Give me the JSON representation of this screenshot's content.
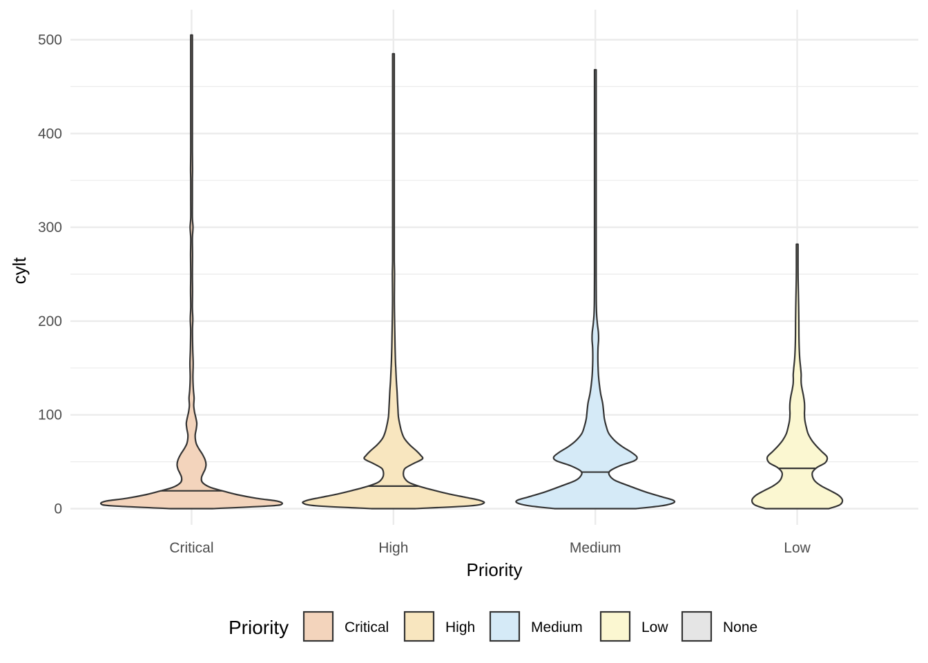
{
  "chart_data": {
    "type": "violin",
    "title": "",
    "xlabel": "Priority",
    "ylabel": "cylt",
    "ylim": [
      -15,
      520
    ],
    "y_ticks": [
      0,
      100,
      200,
      300,
      400,
      500
    ],
    "grid": true,
    "legend": {
      "title": "Priority",
      "position": "bottom",
      "entries": [
        {
          "label": "Critical",
          "color": "#F3D4BC"
        },
        {
          "label": "High",
          "color": "#F8E6BF"
        },
        {
          "label": "Medium",
          "color": "#D5EAF7"
        },
        {
          "label": "Low",
          "color": "#FBF7D1"
        },
        {
          "label": "None",
          "color": "#E5E5E5"
        }
      ]
    },
    "categories": [
      "Critical",
      "High",
      "Medium",
      "Low"
    ],
    "series": [
      {
        "name": "Critical",
        "color": "#F3D4BC",
        "median": 19,
        "profile": [
          [
            0,
            0.23
          ],
          [
            3,
            0.88
          ],
          [
            5,
            1.0
          ],
          [
            8,
            0.95
          ],
          [
            11,
            0.72
          ],
          [
            15,
            0.5
          ],
          [
            19,
            0.34
          ],
          [
            23,
            0.2
          ],
          [
            28,
            0.12
          ],
          [
            33,
            0.11
          ],
          [
            38,
            0.13
          ],
          [
            42,
            0.15
          ],
          [
            47,
            0.16
          ],
          [
            52,
            0.15
          ],
          [
            58,
            0.12
          ],
          [
            64,
            0.08
          ],
          [
            70,
            0.05
          ],
          [
            78,
            0.04
          ],
          [
            85,
            0.052
          ],
          [
            91,
            0.058
          ],
          [
            97,
            0.047
          ],
          [
            103,
            0.033
          ],
          [
            110,
            0.024
          ],
          [
            118,
            0.028
          ],
          [
            127,
            0.02
          ],
          [
            140,
            0.015
          ],
          [
            155,
            0.018
          ],
          [
            170,
            0.013
          ],
          [
            190,
            0.01
          ],
          [
            202,
            0.014
          ],
          [
            215,
            0.009
          ],
          [
            232,
            0.011
          ],
          [
            250,
            0.008
          ],
          [
            270,
            0.011
          ],
          [
            288,
            0.009
          ],
          [
            300,
            0.016
          ],
          [
            310,
            0.009
          ],
          [
            330,
            0.007
          ],
          [
            350,
            0.009
          ],
          [
            362,
            0.011
          ],
          [
            380,
            0.007
          ],
          [
            405,
            0.008
          ],
          [
            420,
            0.007
          ],
          [
            440,
            0.005
          ],
          [
            470,
            0.004
          ],
          [
            490,
            0.003
          ],
          [
            505,
            0.0
          ]
        ]
      },
      {
        "name": "High",
        "color": "#F8E6BF",
        "median": 24,
        "profile": [
          [
            0,
            0.24
          ],
          [
            3,
            0.85
          ],
          [
            6,
            1.0
          ],
          [
            9,
            0.95
          ],
          [
            12,
            0.8
          ],
          [
            16,
            0.6
          ],
          [
            20,
            0.43
          ],
          [
            24,
            0.28
          ],
          [
            28,
            0.17
          ],
          [
            33,
            0.12
          ],
          [
            38,
            0.11
          ],
          [
            43,
            0.13
          ],
          [
            48,
            0.22
          ],
          [
            53,
            0.32
          ],
          [
            57,
            0.3
          ],
          [
            62,
            0.25
          ],
          [
            68,
            0.18
          ],
          [
            75,
            0.12
          ],
          [
            82,
            0.09
          ],
          [
            90,
            0.07
          ],
          [
            98,
            0.055
          ],
          [
            106,
            0.05
          ],
          [
            115,
            0.045
          ],
          [
            125,
            0.04
          ],
          [
            135,
            0.033
          ],
          [
            145,
            0.028
          ],
          [
            158,
            0.022
          ],
          [
            172,
            0.018
          ],
          [
            188,
            0.015
          ],
          [
            205,
            0.012
          ],
          [
            225,
            0.01
          ],
          [
            250,
            0.012
          ],
          [
            265,
            0.009
          ],
          [
            290,
            0.008
          ],
          [
            320,
            0.007
          ],
          [
            360,
            0.008
          ],
          [
            400,
            0.006
          ],
          [
            440,
            0.005
          ],
          [
            470,
            0.004
          ],
          [
            485,
            0.0
          ]
        ]
      },
      {
        "name": "Medium",
        "color": "#D5EAF7",
        "median": 39,
        "profile": [
          [
            0,
            0.45
          ],
          [
            3,
            0.73
          ],
          [
            6,
            0.86
          ],
          [
            9,
            0.86
          ],
          [
            13,
            0.72
          ],
          [
            18,
            0.55
          ],
          [
            24,
            0.38
          ],
          [
            30,
            0.22
          ],
          [
            35,
            0.16
          ],
          [
            40,
            0.16
          ],
          [
            46,
            0.28
          ],
          [
            51,
            0.43
          ],
          [
            55,
            0.46
          ],
          [
            60,
            0.4
          ],
          [
            66,
            0.3
          ],
          [
            72,
            0.22
          ],
          [
            80,
            0.15
          ],
          [
            88,
            0.12
          ],
          [
            96,
            0.1
          ],
          [
            105,
            0.09
          ],
          [
            113,
            0.08
          ],
          [
            122,
            0.06
          ],
          [
            132,
            0.045
          ],
          [
            142,
            0.035
          ],
          [
            152,
            0.03
          ],
          [
            162,
            0.028
          ],
          [
            172,
            0.03
          ],
          [
            180,
            0.036
          ],
          [
            188,
            0.034
          ],
          [
            196,
            0.024
          ],
          [
            206,
            0.015
          ],
          [
            218,
            0.011
          ],
          [
            232,
            0.01
          ],
          [
            250,
            0.009
          ],
          [
            280,
            0.008
          ],
          [
            320,
            0.007
          ],
          [
            360,
            0.006
          ],
          [
            400,
            0.005
          ],
          [
            440,
            0.004
          ],
          [
            468,
            0.0
          ]
        ]
      },
      {
        "name": "Low",
        "color": "#FBF7D1",
        "median": 43,
        "profile": [
          [
            0,
            0.35
          ],
          [
            4,
            0.47
          ],
          [
            9,
            0.5
          ],
          [
            14,
            0.46
          ],
          [
            19,
            0.37
          ],
          [
            24,
            0.27
          ],
          [
            29,
            0.2
          ],
          [
            34,
            0.17
          ],
          [
            39,
            0.17
          ],
          [
            44,
            0.22
          ],
          [
            49,
            0.31
          ],
          [
            55,
            0.33
          ],
          [
            61,
            0.27
          ],
          [
            67,
            0.21
          ],
          [
            73,
            0.16
          ],
          [
            80,
            0.12
          ],
          [
            87,
            0.1
          ],
          [
            94,
            0.085
          ],
          [
            101,
            0.08
          ],
          [
            107,
            0.082
          ],
          [
            113,
            0.08
          ],
          [
            120,
            0.07
          ],
          [
            127,
            0.055
          ],
          [
            133,
            0.045
          ],
          [
            138,
            0.043
          ],
          [
            143,
            0.044
          ],
          [
            150,
            0.038
          ],
          [
            160,
            0.028
          ],
          [
            172,
            0.022
          ],
          [
            185,
            0.019
          ],
          [
            200,
            0.018
          ],
          [
            215,
            0.016
          ],
          [
            230,
            0.013
          ],
          [
            245,
            0.01
          ],
          [
            260,
            0.008
          ],
          [
            272,
            0.008
          ],
          [
            279,
            0.006
          ],
          [
            282,
            0.0
          ]
        ]
      }
    ]
  }
}
